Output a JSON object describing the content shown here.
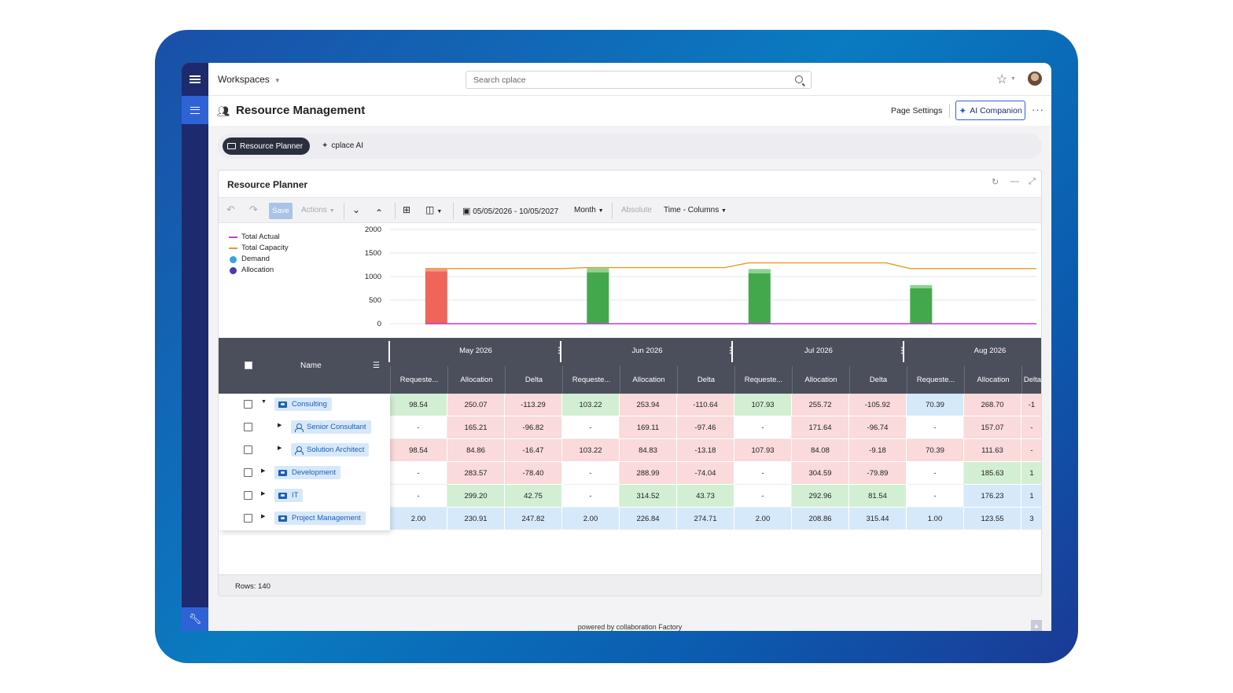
{
  "header": {
    "workspaces_label": "Workspaces",
    "search_placeholder": "Search cplace"
  },
  "page": {
    "title": "Resource Management",
    "settings_label": "Page Settings",
    "ai_label": "AI Companion"
  },
  "tabs": [
    {
      "label": "Resource Planner",
      "active": true
    },
    {
      "label": "cplace AI",
      "active": false
    }
  ],
  "widget": {
    "title": "Resource Planner",
    "toolbar": {
      "save_label": "Save",
      "actions_label": "Actions",
      "date_range": "05/05/2026 - 10/05/2027",
      "granularity": "Month",
      "absolute_label": "Absolute",
      "layout_label": "Time - Columns"
    },
    "footer": {
      "rows_label": "Rows: 140"
    }
  },
  "chart_data": {
    "type": "bar",
    "categories": [
      "May 2026",
      "Jun 2026",
      "Jul 2026",
      "Aug 2026"
    ],
    "ylim": [
      0,
      2000
    ],
    "yticks": [
      "2000",
      "1500",
      "1000",
      "500",
      "0"
    ],
    "legend": [
      {
        "name": "Total Actual",
        "kind": "line",
        "color": "#c23bd4"
      },
      {
        "name": "Total Capacity",
        "kind": "line",
        "color": "#e79a2a"
      },
      {
        "name": "Demand",
        "kind": "dot",
        "color": "#3aa0e6"
      },
      {
        "name": "Allocation",
        "kind": "dot",
        "color": "#4b3aa8"
      }
    ],
    "series": [
      {
        "name": "Allocation",
        "values": [
          1110,
          1090,
          1070,
          750
        ]
      },
      {
        "name": "Demand",
        "values": [
          1160,
          1180,
          1160,
          820
        ]
      },
      {
        "name": "Total Capacity",
        "values": [
          1170,
          1190,
          1290,
          1170
        ]
      },
      {
        "name": "Total Actual",
        "values": [
          0,
          0,
          0,
          0
        ]
      }
    ],
    "bar_colors": [
      "#f0655a",
      "#43a84c",
      "#43a84c",
      "#43a84c"
    ],
    "bar_top_colors": [
      "#f39a90",
      "#8fd392",
      "#8fd392",
      "#8fd392"
    ]
  },
  "grid": {
    "name_header": "Name",
    "months": [
      "May 2026",
      "Jun 2026",
      "Jul 2026",
      "Aug 2026"
    ],
    "subheaders": [
      "Requeste...",
      "Allocation",
      "Delta",
      "Requeste...",
      "Allocation",
      "Delta",
      "Requeste...",
      "Allocation",
      "Delta",
      "Requeste...",
      "Allocation",
      "Delta"
    ],
    "rows": [
      {
        "label": "Consulting",
        "level": 0,
        "kind": "group",
        "expanded": true,
        "cells": [
          [
            "98.54",
            "g"
          ],
          [
            "250.07",
            "r"
          ],
          [
            "-113.29",
            "r"
          ],
          [
            "103.22",
            "g"
          ],
          [
            "253.94",
            "r"
          ],
          [
            "-110.64",
            "r"
          ],
          [
            "107.93",
            "g"
          ],
          [
            "255.72",
            "r"
          ],
          [
            "-105.92",
            "r"
          ],
          [
            "70.39",
            "b"
          ],
          [
            "268.70",
            "r"
          ],
          [
            "-1",
            "r"
          ]
        ]
      },
      {
        "label": "Senior Consultant",
        "level": 1,
        "kind": "person",
        "expanded": false,
        "cells": [
          [
            "-",
            "w"
          ],
          [
            "165.21",
            "r"
          ],
          [
            "-96.82",
            "r"
          ],
          [
            "-",
            "w"
          ],
          [
            "169.11",
            "r"
          ],
          [
            "-97.46",
            "r"
          ],
          [
            "-",
            "w"
          ],
          [
            "171.64",
            "r"
          ],
          [
            "-96.74",
            "r"
          ],
          [
            "-",
            "w"
          ],
          [
            "157.07",
            "r"
          ],
          [
            "-",
            "r"
          ]
        ]
      },
      {
        "label": "Solution Architect",
        "level": 1,
        "kind": "person",
        "expanded": false,
        "cells": [
          [
            "98.54",
            "r"
          ],
          [
            "84.86",
            "r"
          ],
          [
            "-16.47",
            "r"
          ],
          [
            "103.22",
            "r"
          ],
          [
            "84.83",
            "r"
          ],
          [
            "-13.18",
            "r"
          ],
          [
            "107.93",
            "r"
          ],
          [
            "84.08",
            "r"
          ],
          [
            "-9.18",
            "r"
          ],
          [
            "70.39",
            "r"
          ],
          [
            "111.63",
            "r"
          ],
          [
            "-",
            "r"
          ]
        ]
      },
      {
        "label": "Development",
        "level": 0,
        "kind": "group",
        "expanded": false,
        "cells": [
          [
            "-",
            "w"
          ],
          [
            "283.57",
            "r"
          ],
          [
            "-78.40",
            "r"
          ],
          [
            "-",
            "w"
          ],
          [
            "288.99",
            "r"
          ],
          [
            "-74.04",
            "r"
          ],
          [
            "-",
            "w"
          ],
          [
            "304.59",
            "r"
          ],
          [
            "-79.89",
            "r"
          ],
          [
            "-",
            "w"
          ],
          [
            "185.63",
            "g"
          ],
          [
            "1",
            "g"
          ]
        ]
      },
      {
        "label": "IT",
        "level": 0,
        "kind": "group",
        "expanded": false,
        "cells": [
          [
            "-",
            "w"
          ],
          [
            "299.20",
            "g"
          ],
          [
            "42.75",
            "g"
          ],
          [
            "-",
            "w"
          ],
          [
            "314.52",
            "g"
          ],
          [
            "43.73",
            "g"
          ],
          [
            "-",
            "w"
          ],
          [
            "292.96",
            "g"
          ],
          [
            "81.54",
            "g"
          ],
          [
            "-",
            "w"
          ],
          [
            "176.23",
            "b"
          ],
          [
            "1",
            "b"
          ]
        ]
      },
      {
        "label": "Project Management",
        "level": 0,
        "kind": "group",
        "expanded": false,
        "cells": [
          [
            "2.00",
            "b"
          ],
          [
            "230.91",
            "b"
          ],
          [
            "247.82",
            "b"
          ],
          [
            "2.00",
            "b"
          ],
          [
            "226.84",
            "b"
          ],
          [
            "274.71",
            "b"
          ],
          [
            "2.00",
            "b"
          ],
          [
            "208.86",
            "b"
          ],
          [
            "315.44",
            "b"
          ],
          [
            "1.00",
            "b"
          ],
          [
            "123.55",
            "b"
          ],
          [
            "3",
            "b"
          ]
        ]
      }
    ]
  },
  "powered_by": "powered by collaboration Factory"
}
